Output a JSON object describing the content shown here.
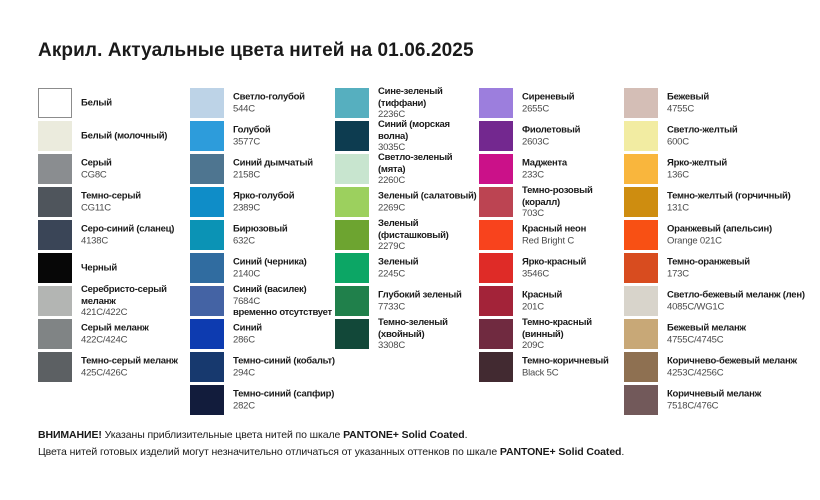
{
  "title": "Акрил. Актуальные цвета нитей на 01.06.2025",
  "columns": [
    {
      "items": [
        {
          "name": "Белый",
          "code": "",
          "color": "#FFFFFF",
          "border": true
        },
        {
          "name": "Белый (молочный)",
          "code": "",
          "color": "#EBEBDD"
        },
        {
          "name": "Серый",
          "code": "CG8C",
          "color": "#8A8D90"
        },
        {
          "name": "Темно-серый",
          "code": "CG11C",
          "color": "#4F555C"
        },
        {
          "name": "Серо-синий (сланец)",
          "code": "4138C",
          "color": "#3A4557"
        },
        {
          "name": "Черный",
          "code": "",
          "color": "#070707"
        },
        {
          "name": "Серебристо-серый меланж",
          "code": "421C/422C",
          "color": "#B3B5B3"
        },
        {
          "name": "Серый меланж",
          "code": "422C/424C",
          "color": "#808485"
        },
        {
          "name": "Темно-серый меланж",
          "code": "425C/426C",
          "color": "#5C6063"
        }
      ]
    },
    {
      "items": [
        {
          "name": "Светло-голубой",
          "code": "544C",
          "color": "#BDD3E7"
        },
        {
          "name": "Голубой",
          "code": "3577C",
          "color": "#2D9CDB"
        },
        {
          "name": "Синий дымчатый",
          "code": "2158C",
          "color": "#4E7590"
        },
        {
          "name": "Ярко-голубой",
          "code": "2389C",
          "color": "#0F8DC8"
        },
        {
          "name": "Бирюзовый",
          "code": "632C",
          "color": "#0B93B5"
        },
        {
          "name": "Синий (черника)",
          "code": "2140C",
          "color": "#306CA0"
        },
        {
          "name": "Синий (василек)",
          "code": "7684C",
          "color": "#4463A4",
          "note": "временно отсутствует"
        },
        {
          "name": "Синий",
          "code": "286C",
          "color": "#0D3BB0"
        },
        {
          "name": "Темно-синий (кобальт)",
          "code": "294C",
          "color": "#17396E"
        },
        {
          "name": "Темно-синий (сапфир)",
          "code": "282C",
          "color": "#121C3C"
        }
      ]
    },
    {
      "items": [
        {
          "name": "Сине-зеленый (тиффани)",
          "code": "2236C",
          "color": "#56AFBF"
        },
        {
          "name": "Синий (морская волна)",
          "code": "3035C",
          "color": "#0D3C50"
        },
        {
          "name": "Светло-зеленый (мята)",
          "code": "2260C",
          "color": "#C8E5CF"
        },
        {
          "name": "Зеленый (салатовый)",
          "code": "2269C",
          "color": "#9CD05E"
        },
        {
          "name": "Зеленый (фисташковый)",
          "code": "2279C",
          "color": "#6DA430"
        },
        {
          "name": "Зеленый",
          "code": "2245C",
          "color": "#0CA665"
        },
        {
          "name": "Глубокий зеленый",
          "code": "7733C",
          "color": "#20804B"
        },
        {
          "name": "Темно-зеленый (хвойный)",
          "code": "3308C",
          "color": "#124839"
        }
      ]
    },
    {
      "items": [
        {
          "name": "Сиреневый",
          "code": "2655C",
          "color": "#9C7EDD"
        },
        {
          "name": "Фиолетовый",
          "code": "2603C",
          "color": "#73288F"
        },
        {
          "name": "Маджента",
          "code": "233C",
          "color": "#CB1189"
        },
        {
          "name": "Темно-розовый (коралл)",
          "code": "703C",
          "color": "#BC4452"
        },
        {
          "name": "Красный неон",
          "code": "Red Bright C",
          "color": "#F8431D"
        },
        {
          "name": "Ярко-красный",
          "code": "3546C",
          "color": "#DF2B27"
        },
        {
          "name": "Красный",
          "code": "201C",
          "color": "#A32339"
        },
        {
          "name": "Темно-красный (винный)",
          "code": "209C",
          "color": "#702A40"
        },
        {
          "name": "Темно-коричневый",
          "code": "Black 5C",
          "color": "#422A31"
        }
      ]
    },
    {
      "items": [
        {
          "name": "Бежевый",
          "code": "4755C",
          "color": "#D4BEB6"
        },
        {
          "name": "Светло-желтый",
          "code": "600C",
          "color": "#F2ECA2"
        },
        {
          "name": "Ярко-желтый",
          "code": "136C",
          "color": "#F9B63D"
        },
        {
          "name": "Темно-желтый (горчичный)",
          "code": "131C",
          "color": "#CE8D10"
        },
        {
          "name": "Оранжевый (апельсин)",
          "code": "Orange 021C",
          "color": "#F85014"
        },
        {
          "name": "Темно-оранжевый",
          "code": "173C",
          "color": "#D84C1F"
        },
        {
          "name": "Светло-бежевый меланж (лен)",
          "code": "4085C/WG1C",
          "color": "#D8D4CB"
        },
        {
          "name": "Бежевый меланж",
          "code": "4755C/4745C",
          "color": "#C8A877"
        },
        {
          "name": "Коричнево-бежевый меланж",
          "code": "4253C/4256C",
          "color": "#8E7051"
        },
        {
          "name": "Коричневый меланж",
          "code": "7518C/476C",
          "color": "#72595A"
        }
      ]
    }
  ],
  "footer": {
    "line1": {
      "bold_prefix": "ВНИМАНИЕ!",
      "text": " Указаны приблизительные цвета нитей по шкале ",
      "bold_scale": "PANTONE+ Solid Coated",
      "suffix": "."
    },
    "line2": {
      "text": "Цвета нитей готовых изделий могут незначительно отличаться от указанных оттенков по шкале ",
      "bold_scale": "PANTONE+ Solid Coated",
      "suffix": "."
    }
  }
}
